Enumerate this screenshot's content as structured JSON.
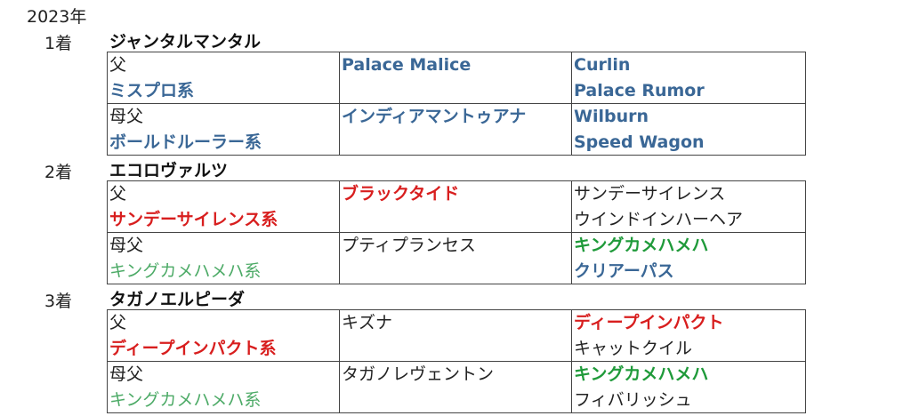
{
  "year": "2023年",
  "colors": {
    "blue": "#3a6796",
    "red": "#d81e1e",
    "green": "#1f9a3a",
    "light_green": "#4caa66"
  },
  "entries": [
    {
      "rank": "1着",
      "horse": "ジャンタルマンタル",
      "rows": [
        {
          "label": "父",
          "line": "ミスプロ系",
          "line_style": "blue bold",
          "parent": "Palace Malice",
          "parent_style": "blue bold",
          "gp1": "Curlin",
          "gp1_style": "blue bold",
          "gp2": "Palace Rumor",
          "gp2_style": "blue bold"
        },
        {
          "label": "母父",
          "line": "ボールドルーラー系",
          "line_style": "blue bold",
          "parent": "インディアマントゥアナ",
          "parent_style": "blue bold",
          "gp1": "Wilburn",
          "gp1_style": "blue bold",
          "gp2": "Speed Wagon",
          "gp2_style": "blue bold"
        }
      ]
    },
    {
      "rank": "2着",
      "horse": "エコロヴァルツ",
      "rows": [
        {
          "label": "父",
          "line": "サンデーサイレンス系",
          "line_style": "red bold",
          "parent": "ブラックタイド",
          "parent_style": "red bold",
          "gp1": "サンデーサイレンス",
          "gp1_style": "plain",
          "gp2": "ウインドインハーヘア",
          "gp2_style": "plain"
        },
        {
          "label": "母父",
          "line": "キングカメハメハ系",
          "line_style": "light green",
          "parent": "プティプランセス",
          "parent_style": "plain",
          "gp1": "キングカメハメハ",
          "gp1_style": "green bold",
          "gp2": "クリアーパス",
          "gp2_style": "blue bold"
        }
      ]
    },
    {
      "rank": "3着",
      "horse": "タガノエルピーダ",
      "rows": [
        {
          "label": "父",
          "line": "ディープインパクト系",
          "line_style": "red bold",
          "parent": "キズナ",
          "parent_style": "plain",
          "gp1": "ディープインパクト",
          "gp1_style": "red bold",
          "gp2": "キャットクイル",
          "gp2_style": "plain"
        },
        {
          "label": "母父",
          "line": "キングカメハメハ系",
          "line_style": "light green",
          "parent": "タガノレヴェントン",
          "parent_style": "plain",
          "gp1": "キングカメハメハ",
          "gp1_style": "green bold",
          "gp2": "フィバリッシュ",
          "gp2_style": "plain"
        }
      ]
    }
  ]
}
